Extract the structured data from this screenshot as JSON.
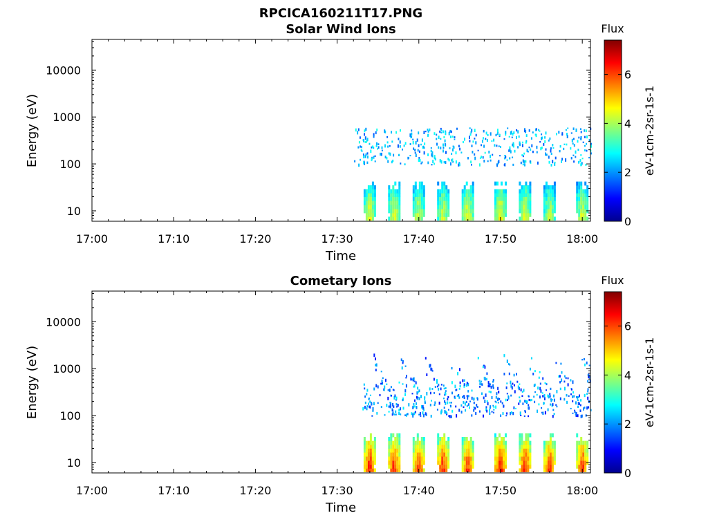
{
  "figure_title": "RPCICA160211T17.PNG",
  "chart_data": [
    {
      "type": "heatmap",
      "title": "Solar Wind Ions",
      "xlabel": "Time",
      "ylabel": "Energy (eV)",
      "y_scale": "log",
      "ylim": [
        6,
        45000
      ],
      "xlim": [
        "17:00",
        "18:01"
      ],
      "x_ticks": [
        "17:00",
        "17:10",
        "17:20",
        "17:30",
        "17:40",
        "17:50",
        "18:00"
      ],
      "y_ticks": [
        "10",
        "100",
        "1000",
        "10000"
      ],
      "colorbar": {
        "title": "Flux",
        "label": "eV-1cm-2sr-1s-1",
        "ticks": [
          "0",
          "2",
          "4",
          "6"
        ],
        "range": [
          0,
          7.4
        ]
      },
      "low_energy_bursts": [
        {
          "time": "17:34",
          "flux": 4.6
        },
        {
          "time": "17:37",
          "flux": 4.5
        },
        {
          "time": "17:40",
          "flux": 4.4
        },
        {
          "time": "17:43",
          "flux": 4.3
        },
        {
          "time": "17:46",
          "flux": 4.6
        },
        {
          "time": "17:50",
          "flux": 4.7
        },
        {
          "time": "17:53",
          "flux": 4.5
        },
        {
          "time": "17:56",
          "flux": 4.2
        },
        {
          "time": "18:00",
          "flux": 4.4
        }
      ],
      "scatter_band": {
        "start": "17:32",
        "end": "18:01",
        "energy_min": 100,
        "energy_max": 600,
        "flux_min": 1.5,
        "flux_max": 3.0
      }
    },
    {
      "type": "heatmap",
      "title": "Cometary Ions",
      "xlabel": "Time",
      "ylabel": "Energy (eV)",
      "y_scale": "log",
      "ylim": [
        6,
        45000
      ],
      "xlim": [
        "17:00",
        "18:01"
      ],
      "x_ticks": [
        "17:00",
        "17:10",
        "17:20",
        "17:30",
        "17:40",
        "17:50",
        "18:00"
      ],
      "y_ticks": [
        "10",
        "100",
        "1000",
        "10000"
      ],
      "colorbar": {
        "title": "Flux",
        "label": "eV-1cm-2sr-1s-1",
        "ticks": [
          "0",
          "2",
          "4",
          "6"
        ],
        "range": [
          0,
          7.4
        ]
      },
      "low_energy_bursts": [
        {
          "time": "17:34",
          "flux": 6.5
        },
        {
          "time": "17:37",
          "flux": 6.4
        },
        {
          "time": "17:40",
          "flux": 6.2
        },
        {
          "time": "17:43",
          "flux": 6.4
        },
        {
          "time": "17:46",
          "flux": 6.3
        },
        {
          "time": "17:50",
          "flux": 6.5
        },
        {
          "time": "17:53",
          "flux": 6.4
        },
        {
          "time": "17:56",
          "flux": 6.2
        },
        {
          "time": "18:00",
          "flux": 6.3
        }
      ],
      "scatter_band": {
        "start": "17:33",
        "end": "18:01",
        "energy_min": 100,
        "energy_max": 2500,
        "flux_min": 1.0,
        "flux_max": 2.8
      }
    }
  ]
}
